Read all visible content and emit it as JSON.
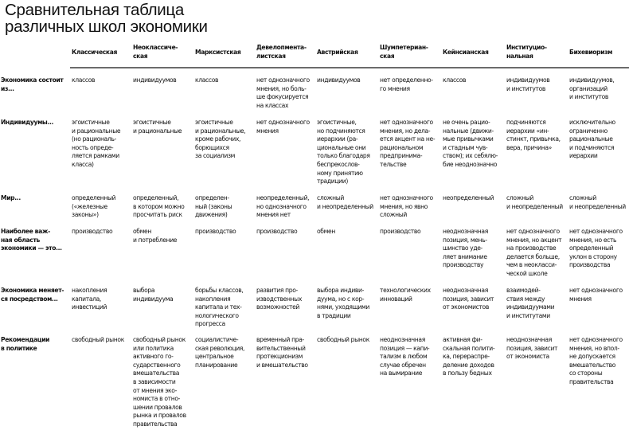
{
  "title": "Сравнительная таблица\nразличных школ экономики",
  "columns": [
    "Классическая",
    "Неоклассиче-\nская",
    "Марксистская",
    "Девелопмента-\nлистская",
    "Австрийская",
    "Шумпетериан-\nская",
    "Кейнсианская",
    "Институцио-\nнальная",
    "Бихевиоризм"
  ],
  "rows": [
    {
      "label": "Экономика состоит\nиз...",
      "cells": [
        "классов",
        "индивидуумов",
        "классов",
        "нет однозначного\nмнения, но боль-\nше фокусируется\nна классах",
        "индивидуумов",
        "нет определенно-\nго мнения",
        "классов",
        "индивидуумов\nи институтов",
        "индивидуумов,\nорганизаций\nи институтов"
      ]
    },
    {
      "label": "Индивидуумы...",
      "cells": [
        "эгоистичные\nи рациональные\n(но рациональ-\nность опреде-\nляется рамками\nкласса)",
        "эгоистичные\nи рациональные",
        "эгоистичные\nи рациональные,\nкроме рабочих,\nборющихся\nза социализм",
        "нет однозначного\nмнения",
        "эгоистичные,\nно подчиняются\nиерархии (ра-\nциональные они\nтолько благодаря\nбеспрекослов-\nному принятию\nтрадиции)",
        "нет однозначного\nмнения, но дела-\nется акцент на не-\nрациональном\nпредпринима-\nтельстве",
        "не очень рацио-\nнальные (движи-\nмые привычками\nи стадным чув-\nством); их себялю-\nбие неоднозначно",
        "подчиняются\nиерархии «ин-\nстинкт, привычка,\nвера, причина»",
        "исключительно\nограниченно\nрациональные\nи подчиняются\nиерархии"
      ]
    },
    {
      "label": "Мир...",
      "cells": [
        "определенный\n(«железные\nзаконы»)",
        "определенный,\nв котором можно\nпросчитать риск",
        "определен-\nный (законы\nдвижения)",
        "неопределенный,\nно однозначного\nмнения нет",
        "сложный\nи неопределенный",
        "нет однозначного\nмнения, но явно\nсложный",
        "неопределенный",
        "сложный\nи неопределенный",
        "сложный\nи неопределенный"
      ]
    },
    {
      "label": "Наиболее важ-\nная область\nэкономики — это...",
      "cells": [
        "производство",
        "обмен\nи потребление",
        "производство",
        "производство",
        "обмен",
        "производство",
        "неоднозначная\nпозиция, мень-\nшинство уде-\nляет внимание\nпроизводству",
        "нет однозначного\nмнения, но акцент\nна производстве\nделается больше,\nчем в неокласси-\nческой школе",
        "нет однозначного\nмнения, но есть\nопределенный\nуклон в сторону\nпроизводства"
      ]
    },
    {
      "label": "Экономика меняет-\nся посредством...",
      "cells": [
        "накопления\nкапитала,\nинвестиций",
        "выбора\nиндивидуума",
        "борьбы классов,\nнакопления\nкапитала и тех-\nнологического\nпрогресса",
        "развития про-\nизводственных\nвозможностей",
        "выбора индиви-\nдуума, но с кор-\nнями, уходящими\nв традиции",
        "технологических\nинноваций",
        "неоднозначная\nпозиция, зависит\nот экономистов",
        "взаимодей-\nствия между\nиндивидуумами\nи институтами",
        "нет однозначного\nмнения"
      ]
    },
    {
      "label": "Рекомендации\nв политике",
      "cells": [
        "свободный рынок",
        "свободный рынок\nили политика\nактивного го-\nсударственного\nвмешательства\nв зависимости\nот мнения эко-\nномиста в отно-\nшении провалов\nрынка и провалов\nправительства",
        "социалистиче-\nская революция,\nцентральное\nпланирование",
        "временный пра-\nвительственный\nпротекционизм\nи вмешательство",
        "свободный рынок",
        "неоднозначная\nпозиция — капи-\nтализм в любом\nслучае обречен\nна вымирание",
        "активная фи-\nскальная полити-\nка, перераспре-\nделение доходов\nв пользу бедных",
        "неоднозначная\nпозиция, зависит\nот экономиста",
        "нет однозначного\nмнения, но впол-\nне допускается\nвмешательство\nсо стороны\nправительства"
      ]
    }
  ]
}
